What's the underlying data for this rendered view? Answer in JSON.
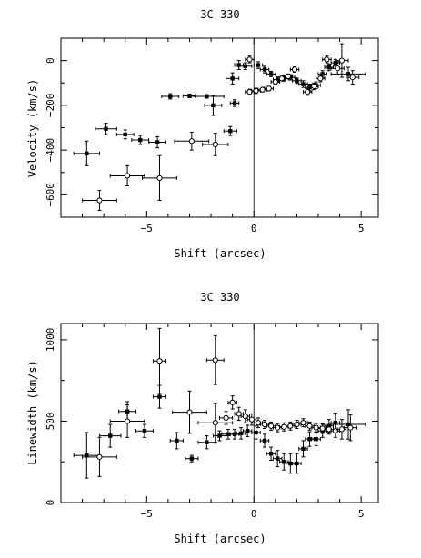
{
  "chart_data": [
    {
      "type": "scatter",
      "title": "3C 330",
      "xlabel": "Shift (arcsec)",
      "ylabel": "Velocity (km/s)",
      "xlim": [
        -9,
        5.8
      ],
      "ylim": [
        -700,
        100
      ],
      "xticks": [
        -5,
        0,
        5
      ],
      "yticks": [
        0,
        -200,
        -400,
        -600
      ],
      "vline_x": 0,
      "grid": false,
      "series": [
        {
          "marker": "filled",
          "points": [
            {
              "x": -7.8,
              "y": -415,
              "xerr": 0.6,
              "yerr": 55
            },
            {
              "x": -6.9,
              "y": -305,
              "xerr": 0.5,
              "yerr": 25
            },
            {
              "x": -6.0,
              "y": -330,
              "xerr": 0.4,
              "yerr": 20
            },
            {
              "x": -5.3,
              "y": -355,
              "xerr": 0.4,
              "yerr": 20
            },
            {
              "x": -4.5,
              "y": -365,
              "xerr": 0.4,
              "yerr": 25
            },
            {
              "x": -3.9,
              "y": -160,
              "xerr": 0.4,
              "yerr": 12
            },
            {
              "x": -3.0,
              "y": -158,
              "xerr": 0.3,
              "yerr": 8
            },
            {
              "x": -2.2,
              "y": -160,
              "xerr": 0.8,
              "yerr": 8
            },
            {
              "x": -1.9,
              "y": -200,
              "xerr": 0.4,
              "yerr": 45
            },
            {
              "x": -1.1,
              "y": -315,
              "xerr": 0.3,
              "yerr": 20
            },
            {
              "x": -0.9,
              "y": -190,
              "xerr": 0.2,
              "yerr": 15
            },
            {
              "x": -1.0,
              "y": -80,
              "xerr": 0.3,
              "yerr": 25
            },
            {
              "x": -0.7,
              "y": -20,
              "xerr": 0.2,
              "yerr": 20
            },
            {
              "x": -0.4,
              "y": -25,
              "xerr": 0.3,
              "yerr": 15
            },
            {
              "x": 0.2,
              "y": -20,
              "xerr": 0.2,
              "yerr": 15
            },
            {
              "x": 0.5,
              "y": -40,
              "xerr": 0.2,
              "yerr": 15
            },
            {
              "x": 0.8,
              "y": -60,
              "xerr": 0.2,
              "yerr": 12
            },
            {
              "x": 1.1,
              "y": -85,
              "xerr": 0.2,
              "yerr": 12
            },
            {
              "x": 1.4,
              "y": -80,
              "xerr": 0.2,
              "yerr": 12
            },
            {
              "x": 1.7,
              "y": -75,
              "xerr": 0.2,
              "yerr": 12
            },
            {
              "x": 2.0,
              "y": -90,
              "xerr": 0.2,
              "yerr": 12
            },
            {
              "x": 2.3,
              "y": -105,
              "xerr": 0.2,
              "yerr": 15
            },
            {
              "x": 2.6,
              "y": -120,
              "xerr": 0.2,
              "yerr": 15
            },
            {
              "x": 2.9,
              "y": -110,
              "xerr": 0.2,
              "yerr": 15
            },
            {
              "x": 3.2,
              "y": -60,
              "xerr": 0.2,
              "yerr": 15
            },
            {
              "x": 3.5,
              "y": -30,
              "xerr": 0.2,
              "yerr": 15
            },
            {
              "x": 3.8,
              "y": -10,
              "xerr": 0.2,
              "yerr": 15
            },
            {
              "x": 4.4,
              "y": -60,
              "xerr": 0.8,
              "yerr": 30
            }
          ]
        },
        {
          "marker": "open",
          "points": [
            {
              "x": -7.2,
              "y": -625,
              "xerr": 0.8,
              "yerr": 45
            },
            {
              "x": -5.9,
              "y": -515,
              "xerr": 0.8,
              "yerr": 45
            },
            {
              "x": -4.4,
              "y": -525,
              "xerr": 0.8,
              "yerr": 100
            },
            {
              "x": -2.9,
              "y": -360,
              "xerr": 0.8,
              "yerr": 40
            },
            {
              "x": -1.8,
              "y": -375,
              "xerr": 0.6,
              "yerr": 50
            },
            {
              "x": -0.2,
              "y": 5,
              "xerr": 0.2,
              "yerr": 15
            },
            {
              "x": -0.2,
              "y": -140,
              "xerr": 0.2,
              "yerr": 12
            },
            {
              "x": 0.1,
              "y": -135,
              "xerr": 0.2,
              "yerr": 12
            },
            {
              "x": 0.4,
              "y": -130,
              "xerr": 0.2,
              "yerr": 10
            },
            {
              "x": 0.7,
              "y": -125,
              "xerr": 0.2,
              "yerr": 10
            },
            {
              "x": 1.0,
              "y": -95,
              "xerr": 0.2,
              "yerr": 10
            },
            {
              "x": 1.3,
              "y": -80,
              "xerr": 0.2,
              "yerr": 10
            },
            {
              "x": 1.6,
              "y": -70,
              "xerr": 0.2,
              "yerr": 10
            },
            {
              "x": 1.9,
              "y": -40,
              "xerr": 0.2,
              "yerr": 12
            },
            {
              "x": 2.5,
              "y": -140,
              "xerr": 0.2,
              "yerr": 15
            },
            {
              "x": 2.8,
              "y": -115,
              "xerr": 0.2,
              "yerr": 15
            },
            {
              "x": 3.1,
              "y": -80,
              "xerr": 0.2,
              "yerr": 15
            },
            {
              "x": 3.4,
              "y": 5,
              "xerr": 0.2,
              "yerr": 15
            },
            {
              "x": 3.9,
              "y": -35,
              "xerr": 0.3,
              "yerr": 30
            },
            {
              "x": 4.1,
              "y": 0,
              "xerr": 0.3,
              "yerr": 75
            },
            {
              "x": 4.6,
              "y": -75,
              "xerr": 0.3,
              "yerr": 30
            }
          ]
        }
      ]
    },
    {
      "type": "scatter",
      "title": "3C 330",
      "xlabel": "Shift (arcsec)",
      "ylabel": "Linewidth (km/s)",
      "xlim": [
        -9,
        5.8
      ],
      "ylim": [
        0,
        1100
      ],
      "xticks": [
        -5,
        0,
        5
      ],
      "yticks": [
        0,
        500,
        1000
      ],
      "vline_x": 0,
      "grid": false,
      "series": [
        {
          "marker": "filled",
          "points": [
            {
              "x": -7.8,
              "y": 290,
              "xerr": 0.6,
              "yerr": 140
            },
            {
              "x": -6.7,
              "y": 410,
              "xerr": 0.5,
              "yerr": 70
            },
            {
              "x": -5.9,
              "y": 560,
              "xerr": 0.4,
              "yerr": 60
            },
            {
              "x": -5.1,
              "y": 440,
              "xerr": 0.4,
              "yerr": 40
            },
            {
              "x": -4.4,
              "y": 650,
              "xerr": 0.3,
              "yerr": 70
            },
            {
              "x": -3.6,
              "y": 380,
              "xerr": 0.3,
              "yerr": 50
            },
            {
              "x": -2.9,
              "y": 270,
              "xerr": 0.3,
              "yerr": 20
            },
            {
              "x": -2.2,
              "y": 370,
              "xerr": 0.4,
              "yerr": 40
            },
            {
              "x": -1.6,
              "y": 410,
              "xerr": 0.3,
              "yerr": 30
            },
            {
              "x": -1.2,
              "y": 420,
              "xerr": 0.3,
              "yerr": 30
            },
            {
              "x": -0.9,
              "y": 420,
              "xerr": 0.2,
              "yerr": 30
            },
            {
              "x": -0.6,
              "y": 425,
              "xerr": 0.2,
              "yerr": 35
            },
            {
              "x": -0.3,
              "y": 440,
              "xerr": 0.2,
              "yerr": 35
            },
            {
              "x": 0.1,
              "y": 430,
              "xerr": 0.2,
              "yerr": 40
            },
            {
              "x": 0.5,
              "y": 380,
              "xerr": 0.2,
              "yerr": 40
            },
            {
              "x": 0.8,
              "y": 300,
              "xerr": 0.2,
              "yerr": 40
            },
            {
              "x": 1.1,
              "y": 270,
              "xerr": 0.2,
              "yerr": 50
            },
            {
              "x": 1.4,
              "y": 250,
              "xerr": 0.2,
              "yerr": 50
            },
            {
              "x": 1.7,
              "y": 240,
              "xerr": 0.2,
              "yerr": 60
            },
            {
              "x": 2.0,
              "y": 240,
              "xerr": 0.2,
              "yerr": 60
            },
            {
              "x": 2.3,
              "y": 330,
              "xerr": 0.2,
              "yerr": 50
            },
            {
              "x": 2.6,
              "y": 390,
              "xerr": 0.2,
              "yerr": 45
            },
            {
              "x": 2.9,
              "y": 390,
              "xerr": 0.2,
              "yerr": 40
            },
            {
              "x": 3.2,
              "y": 440,
              "xerr": 0.2,
              "yerr": 40
            },
            {
              "x": 3.5,
              "y": 470,
              "xerr": 0.2,
              "yerr": 40
            },
            {
              "x": 3.8,
              "y": 490,
              "xerr": 0.2,
              "yerr": 60
            },
            {
              "x": 4.4,
              "y": 480,
              "xerr": 0.8,
              "yerr": 90
            }
          ]
        },
        {
          "marker": "open",
          "points": [
            {
              "x": -7.2,
              "y": 280,
              "xerr": 0.8,
              "yerr": 120
            },
            {
              "x": -5.9,
              "y": 500,
              "xerr": 0.8,
              "yerr": 100
            },
            {
              "x": -4.4,
              "y": 870,
              "xerr": 0.3,
              "yerr": 200
            },
            {
              "x": -3.0,
              "y": 555,
              "xerr": 0.8,
              "yerr": 130
            },
            {
              "x": -1.8,
              "y": 875,
              "xerr": 0.4,
              "yerr": 150
            },
            {
              "x": -1.8,
              "y": 490,
              "xerr": 0.8,
              "yerr": 120
            },
            {
              "x": -1.3,
              "y": 520,
              "xerr": 0.3,
              "yerr": 40
            },
            {
              "x": -1.0,
              "y": 615,
              "xerr": 0.2,
              "yerr": 40
            },
            {
              "x": -0.7,
              "y": 545,
              "xerr": 0.2,
              "yerr": 40
            },
            {
              "x": -0.4,
              "y": 530,
              "xerr": 0.2,
              "yerr": 40
            },
            {
              "x": -0.1,
              "y": 510,
              "xerr": 0.2,
              "yerr": 35
            },
            {
              "x": 0.2,
              "y": 490,
              "xerr": 0.2,
              "yerr": 30
            },
            {
              "x": 0.5,
              "y": 480,
              "xerr": 0.2,
              "yerr": 25
            },
            {
              "x": 0.8,
              "y": 470,
              "xerr": 0.2,
              "yerr": 25
            },
            {
              "x": 1.1,
              "y": 460,
              "xerr": 0.2,
              "yerr": 25
            },
            {
              "x": 1.4,
              "y": 465,
              "xerr": 0.2,
              "yerr": 25
            },
            {
              "x": 1.7,
              "y": 470,
              "xerr": 0.2,
              "yerr": 25
            },
            {
              "x": 2.0,
              "y": 480,
              "xerr": 0.2,
              "yerr": 25
            },
            {
              "x": 2.3,
              "y": 490,
              "xerr": 0.2,
              "yerr": 25
            },
            {
              "x": 2.6,
              "y": 470,
              "xerr": 0.2,
              "yerr": 25
            },
            {
              "x": 2.9,
              "y": 460,
              "xerr": 0.2,
              "yerr": 25
            },
            {
              "x": 3.2,
              "y": 455,
              "xerr": 0.2,
              "yerr": 30
            },
            {
              "x": 3.5,
              "y": 450,
              "xerr": 0.2,
              "yerr": 30
            },
            {
              "x": 3.8,
              "y": 440,
              "xerr": 0.2,
              "yerr": 40
            },
            {
              "x": 4.1,
              "y": 450,
              "xerr": 0.2,
              "yerr": 60
            },
            {
              "x": 4.5,
              "y": 460,
              "xerr": 0.3,
              "yerr": 80
            }
          ]
        }
      ]
    }
  ]
}
